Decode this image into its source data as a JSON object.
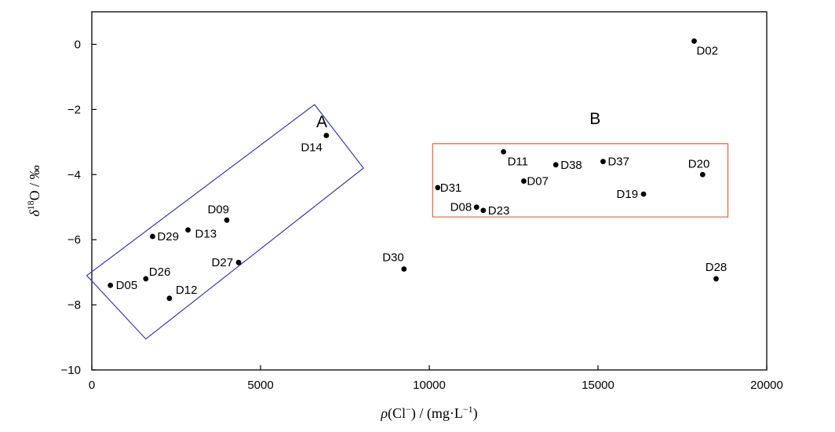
{
  "chart_data": {
    "type": "scatter",
    "xlabel": {
      "rho": "ρ",
      "ion": "(Cl",
      "ion_charge": "−",
      "close": ")",
      "sep": " / ",
      "unit": "(mg·L",
      "unit_exp": "−1",
      "unit_close": ")"
    },
    "ylabel": {
      "delta": "δ",
      "mass": "18",
      "element": "O",
      "sep": " / ",
      "unit": "‰"
    },
    "xlim": [
      0,
      20000
    ],
    "ylim": [
      -10,
      1
    ],
    "xticks": [
      0,
      5000,
      10000,
      15000,
      20000
    ],
    "yticks": [
      -10,
      -8,
      -6,
      -4,
      -2,
      0
    ],
    "xtick_labels": [
      "0",
      "5000",
      "10000",
      "15000",
      "20000"
    ],
    "ytick_labels": [
      "−10",
      "−8",
      "−6",
      "−4",
      "−2",
      "0"
    ],
    "grid": false,
    "points": [
      {
        "label": "D02",
        "x": 17850,
        "y": 0.1
      },
      {
        "label": "D14",
        "x": 6950,
        "y": -2.8
      },
      {
        "label": "D11",
        "x": 12200,
        "y": -3.3
      },
      {
        "label": "D38",
        "x": 13750,
        "y": -3.7
      },
      {
        "label": "D37",
        "x": 15150,
        "y": -3.6
      },
      {
        "label": "D20",
        "x": 18100,
        "y": -4.0
      },
      {
        "label": "D07",
        "x": 12800,
        "y": -4.2
      },
      {
        "label": "D31",
        "x": 10250,
        "y": -4.4
      },
      {
        "label": "D19",
        "x": 16350,
        "y": -4.6
      },
      {
        "label": "D08",
        "x": 11400,
        "y": -5.0
      },
      {
        "label": "D23",
        "x": 11600,
        "y": -5.1
      },
      {
        "label": "D09",
        "x": 4000,
        "y": -5.4
      },
      {
        "label": "D13",
        "x": 2850,
        "y": -5.7
      },
      {
        "label": "D29",
        "x": 1800,
        "y": -5.9
      },
      {
        "label": "D27",
        "x": 4350,
        "y": -6.7
      },
      {
        "label": "D30",
        "x": 9250,
        "y": -6.9
      },
      {
        "label": "D26",
        "x": 1600,
        "y": -7.2
      },
      {
        "label": "D28",
        "x": 18500,
        "y": -7.2
      },
      {
        "label": "D05",
        "x": 550,
        "y": -7.4
      },
      {
        "label": "D12",
        "x": 2300,
        "y": -7.8
      }
    ],
    "annotations": [
      {
        "name": "A",
        "color": "#3a3aa6",
        "shape": "rotated-rectangle",
        "corners": [
          [
            -150,
            -7.1
          ],
          [
            1600,
            -9.05
          ],
          [
            8050,
            -3.8
          ],
          [
            6600,
            -1.85
          ]
        ]
      },
      {
        "name": "B",
        "color": "#e0643a",
        "shape": "rectangle",
        "corners": [
          [
            10100,
            -5.3
          ],
          [
            18850,
            -5.3
          ],
          [
            18850,
            -3.05
          ],
          [
            10100,
            -3.05
          ]
        ]
      }
    ]
  }
}
